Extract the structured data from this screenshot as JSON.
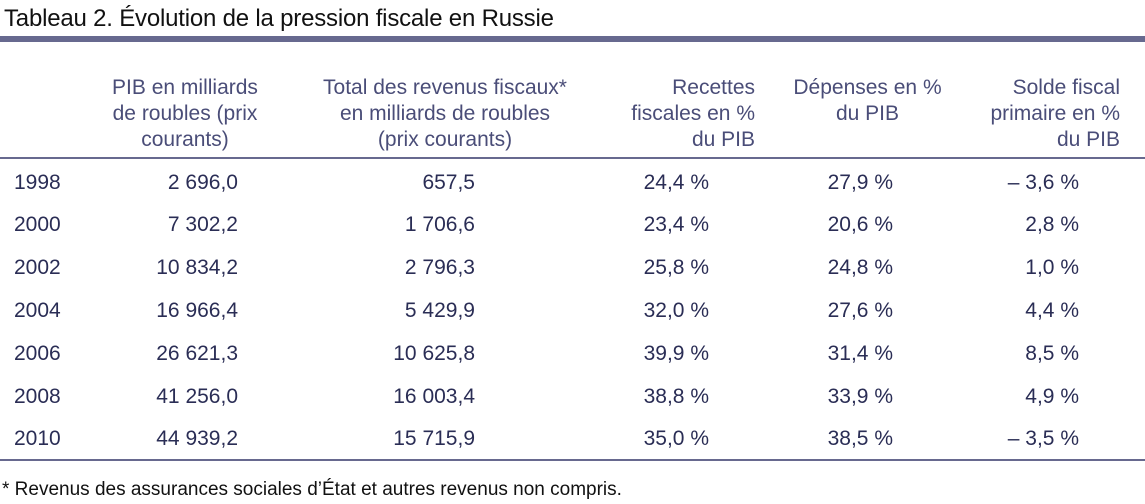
{
  "title": "Tableau 2. Évolution de la pression fiscale en Russie",
  "headers": [
    "PIB en milliards\nde roubles (prix\ncourants)",
    "Total des revenus fiscaux*\nen milliards de roubles\n(prix courants)",
    "Recettes\nfiscales en %\ndu PIB",
    "Dépenses en %\ndu PIB",
    "Solde fiscal\nprimaire en %\ndu PIB"
  ],
  "rows": [
    {
      "year": "1998",
      "cells": [
        "2 696,0",
        "657,5",
        "24,4 %",
        "27,9 %",
        "– 3,6 %"
      ]
    },
    {
      "year": "2000",
      "cells": [
        "7 302,2",
        "1 706,6",
        "23,4 %",
        "20,6 %",
        "2,8 %"
      ]
    },
    {
      "year": "2002",
      "cells": [
        "10 834,2",
        "2 796,3",
        "25,8 %",
        "24,8 %",
        "1,0 %"
      ]
    },
    {
      "year": "2004",
      "cells": [
        "16 966,4",
        "5 429,9",
        "32,0 %",
        "27,6 %",
        "4,4 %"
      ]
    },
    {
      "year": "2006",
      "cells": [
        "26 621,3",
        "10 625,8",
        "39,9 %",
        "31,4 %",
        "8,5 %"
      ]
    },
    {
      "year": "2008",
      "cells": [
        "41 256,0",
        "16 003,4",
        "38,8 %",
        "33,9 %",
        "4,9 %"
      ]
    },
    {
      "year": "2010",
      "cells": [
        "44 939,2",
        "15 715,9",
        "35,0 %",
        "38,5 %",
        "– 3,5 %"
      ]
    }
  ],
  "footnote": "* Revenus des assurances sociales d’État et autres revenus non compris."
}
